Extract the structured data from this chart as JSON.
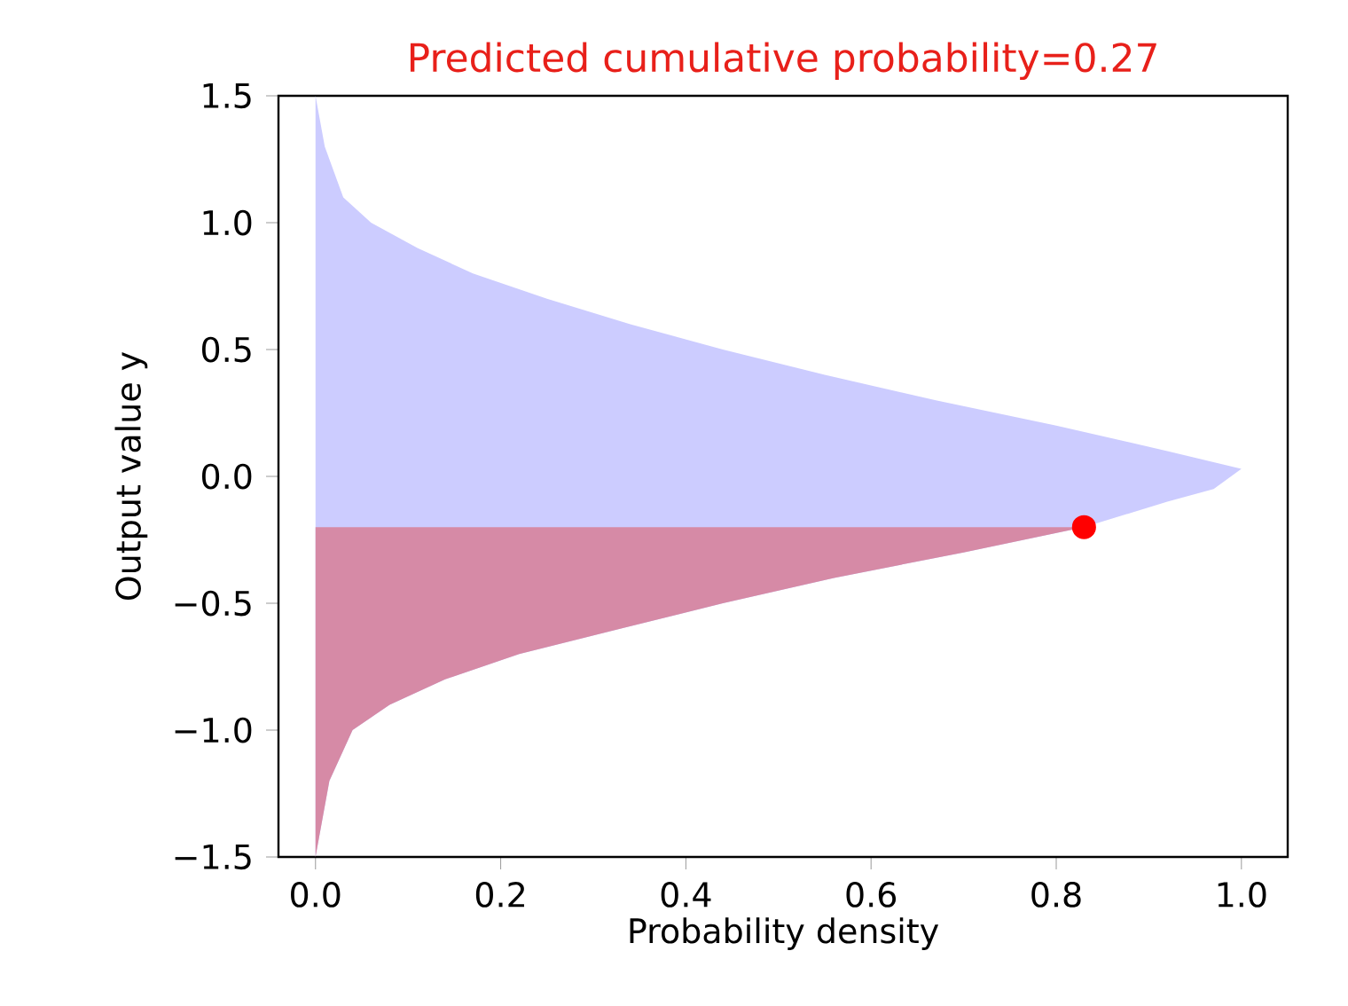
{
  "chart_data": {
    "type": "area",
    "title": "Predicted cumulative probability=0.27",
    "xlabel": "Probability density",
    "ylabel": "Output value y",
    "series": [
      {
        "color": "#ccccff",
        "x": [
          0.0,
          0.01,
          0.03,
          0.06,
          0.11,
          0.17,
          0.25,
          0.34,
          0.44,
          0.55,
          0.67,
          0.8,
          0.92,
          1.0,
          0.97,
          0.92,
          0.83,
          0.7,
          0.56,
          0.44,
          0.33,
          0.22,
          0.14,
          0.08,
          0.04,
          0.015,
          0.0
        ],
        "values": [
          1.5,
          1.3,
          1.1,
          1.0,
          0.9,
          0.8,
          0.7,
          0.6,
          0.5,
          0.4,
          0.3,
          0.2,
          0.1,
          0.03,
          -0.05,
          -0.1,
          -0.2,
          -0.3,
          -0.4,
          -0.5,
          -0.6,
          -0.7,
          -0.8,
          -0.9,
          -1.0,
          -1.2,
          -1.5
        ]
      },
      {
        "color": "#d68aa6",
        "x": [
          0.0,
          0.83,
          0.7,
          0.56,
          0.44,
          0.33,
          0.22,
          0.14,
          0.08,
          0.04,
          0.015,
          0.0
        ],
        "values": [
          -0.2,
          -0.2,
          -0.3,
          -0.4,
          -0.5,
          -0.6,
          -0.7,
          -0.8,
          -0.9,
          -1.0,
          -1.2,
          -1.5
        ]
      },
      {
        "type": "scatter",
        "color": "#ff0000",
        "marker": "circle",
        "x": [
          0.83
        ],
        "values": [
          -0.2
        ]
      }
    ],
    "xlim": [
      -0.04,
      1.05
    ],
    "ylim": [
      -1.5,
      1.5
    ],
    "xticks": [
      {
        "value": 0.0,
        "label": "0.0"
      },
      {
        "value": 0.2,
        "label": "0.2"
      },
      {
        "value": 0.4,
        "label": "0.4"
      },
      {
        "value": 0.6,
        "label": "0.6"
      },
      {
        "value": 0.8,
        "label": "0.8"
      },
      {
        "value": 1.0,
        "label": "1.0"
      }
    ],
    "yticks": [
      {
        "value": -1.5,
        "label": "−1.5"
      },
      {
        "value": -1.0,
        "label": "−1.0"
      },
      {
        "value": -0.5,
        "label": "−0.5"
      },
      {
        "value": 0.0,
        "label": "0.0"
      },
      {
        "value": 0.5,
        "label": "0.5"
      },
      {
        "value": 1.0,
        "label": "1.0"
      },
      {
        "value": 1.5,
        "label": "1.5"
      }
    ]
  }
}
